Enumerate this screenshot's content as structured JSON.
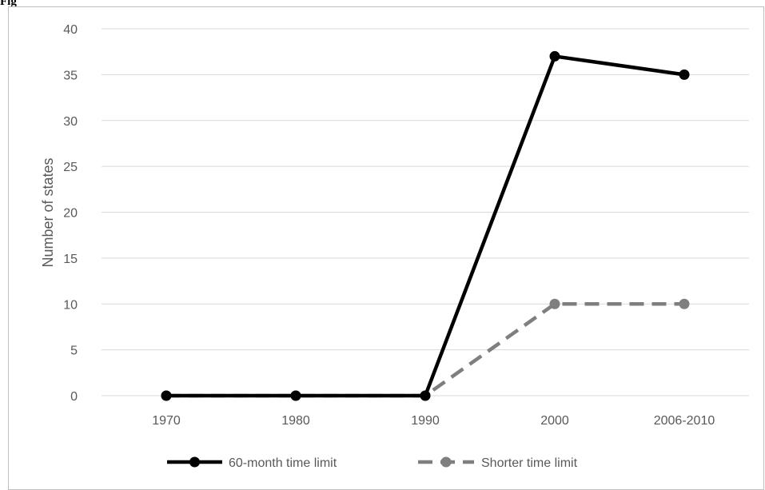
{
  "header_text": "Fig",
  "chart_data": {
    "type": "line",
    "categories": [
      "1970",
      "1980",
      "1990",
      "2000",
      "2006-2010"
    ],
    "ylabel": "Number of states",
    "xlabel": "",
    "ylim": [
      0,
      40
    ],
    "ytick_step": 5,
    "grid": true,
    "legend_position": "bottom",
    "series": [
      {
        "name": "60-month time limit",
        "values": [
          0,
          0,
          0,
          37,
          35
        ],
        "color": "#000000",
        "dash": "solid"
      },
      {
        "name": "Shorter time limit",
        "values": [
          0,
          0,
          0,
          10,
          10
        ],
        "color": "#7f7f7f",
        "dash": "dashed"
      }
    ],
    "colors": {
      "gridline": "#d9d9d9",
      "text": "#595959",
      "frame": "#bfbfbf"
    }
  }
}
